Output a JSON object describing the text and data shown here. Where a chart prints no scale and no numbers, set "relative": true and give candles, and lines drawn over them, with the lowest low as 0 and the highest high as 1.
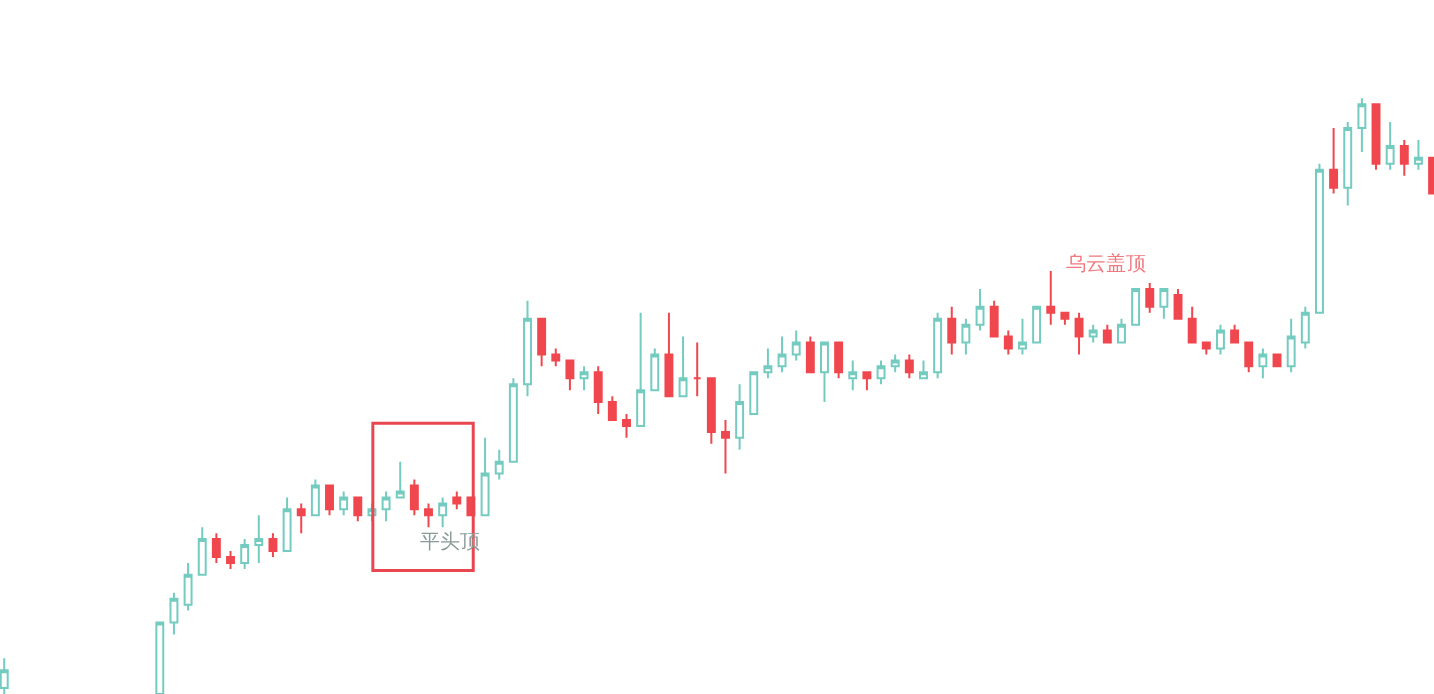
{
  "chart_data": {
    "type": "candlestick",
    "relative": true,
    "colors": [
      "#74cbc0",
      null,
      null,
      null,
      null,
      null,
      null,
      null,
      null,
      null,
      null,
      "#74cbc0",
      "#74cbc0",
      "#74cbc0",
      "#74cbc0",
      "#f0474f",
      "#f0474f",
      "#74cbc0",
      "#74cbc0",
      "#f0474f",
      "#74cbc0",
      "#f0474f",
      "#74cbc0",
      "#f0474f",
      "#74cbc0",
      "#f0474f",
      "#74cbc0",
      "#74cbc0",
      "#74cbc0",
      "#f0474f",
      "#f0474f",
      "#74cbc0",
      "#f0474f",
      "#f0474f",
      "#74cbc0",
      "#74cbc0",
      "#74cbc0",
      "#74cbc0",
      "#f0474f",
      "#f0474f",
      "#f0474f",
      "#74cbc0",
      "#f0474f",
      "#f0474f",
      "#f0474f",
      "#74cbc0",
      "#74cbc0",
      "#f0474f",
      "#74cbc0",
      "#f0474f",
      "#f0474f",
      "#f0474f",
      "#74cbc0",
      "#74cbc0",
      "#74cbc0",
      "#74cbc0",
      "#74cbc0",
      "#f0474f",
      "#74cbc0",
      "#f0474f",
      "#74cbc0",
      "#f0474f",
      "#74cbc0",
      "#74cbc0",
      "#f0474f",
      "#74cbc0",
      "#74cbc0",
      "#f0474f",
      "#74cbc0",
      "#74cbc0",
      "#f0474f",
      "#f0474f",
      "#74cbc0",
      "#74cbc0",
      "#f0474f",
      "#f0474f",
      "#f0474f",
      "#74cbc0",
      "#f0474f",
      "#74cbc0",
      "#74cbc0",
      "#f0474f",
      "#74cbc0",
      "#f0474f",
      "#f0474f",
      "#f0474f",
      "#74cbc0",
      "#f0474f",
      "#f0474f",
      "#74cbc0",
      "#f0474f",
      "#74cbc0",
      "#74cbc0",
      "#74cbc0",
      "#f0474f",
      "#74cbc0",
      "#74cbc0",
      "#f0474f",
      "#74cbc0",
      "#f0474f",
      "#74cbc0",
      "#f0474f"
    ],
    "legend": false,
    "tick_labels": false,
    "annotations": [
      "平头顶",
      "乌云盖顶"
    ],
    "categories": [
      null,
      null,
      null,
      null,
      null,
      null,
      null,
      null,
      null,
      null,
      null,
      null,
      null,
      null,
      null,
      null,
      null,
      null,
      null,
      null,
      null,
      null,
      null,
      null,
      null,
      null,
      null,
      null,
      null,
      null,
      null,
      null,
      null,
      null,
      null,
      null,
      null,
      null,
      null,
      null,
      null,
      null,
      null,
      null,
      null,
      null,
      null,
      null,
      null,
      null,
      null,
      null,
      null,
      null,
      null,
      null,
      null,
      null,
      null,
      null,
      null,
      null,
      null,
      null,
      null,
      null,
      null,
      null,
      null,
      null,
      null,
      null,
      null,
      null,
      null,
      null,
      null,
      null,
      null,
      null,
      null,
      null,
      null,
      null,
      null,
      null,
      null,
      null,
      null,
      null,
      null,
      null,
      null,
      null,
      null,
      null,
      null,
      null,
      null,
      null,
      null,
      null
    ],
    "ohlc": [
      [
        0.01,
        0.06,
        0,
        0.04
      ],
      null,
      null,
      null,
      null,
      null,
      null,
      null,
      null,
      null,
      null,
      [
        0,
        0.12,
        0,
        0.12
      ],
      [
        0.12,
        0.17,
        0.1,
        0.16
      ],
      [
        0.15,
        0.22,
        0.14,
        0.2
      ],
      [
        0.2,
        0.28,
        0.2,
        0.26
      ],
      [
        0.26,
        0.27,
        0.22,
        0.23
      ],
      [
        0.23,
        0.24,
        0.21,
        0.22
      ],
      [
        0.22,
        0.26,
        0.21,
        0.25
      ],
      [
        0.25,
        0.3,
        0.22,
        0.26
      ],
      [
        0.26,
        0.27,
        0.23,
        0.24
      ],
      [
        0.24,
        0.33,
        0.24,
        0.31
      ],
      [
        0.31,
        0.32,
        0.27,
        0.3
      ],
      [
        0.3,
        0.36,
        0.3,
        0.35
      ],
      [
        0.35,
        0.35,
        0.3,
        0.31
      ],
      [
        0.31,
        0.34,
        0.3,
        0.33
      ],
      [
        0.33,
        0.33,
        0.29,
        0.3
      ],
      [
        0.3,
        0.32,
        0.29,
        0.31
      ],
      [
        0.31,
        0.34,
        0.29,
        0.33
      ],
      [
        0.33,
        0.39,
        0.33,
        0.34
      ],
      [
        0.35,
        0.36,
        0.3,
        0.31
      ],
      [
        0.31,
        0.32,
        0.28,
        0.3
      ],
      [
        0.3,
        0.33,
        0.28,
        0.32
      ],
      [
        0.33,
        0.34,
        0.31,
        0.32
      ],
      [
        0.33,
        0.33,
        0.3,
        0.3
      ],
      [
        0.3,
        0.43,
        0.3,
        0.37
      ],
      [
        0.37,
        0.41,
        0.36,
        0.39
      ],
      [
        0.39,
        0.53,
        0.39,
        0.52
      ],
      [
        0.52,
        0.66,
        0.5,
        0.63
      ],
      [
        0.63,
        0.63,
        0.55,
        0.57
      ],
      [
        0.57,
        0.58,
        0.55,
        0.56
      ],
      [
        0.56,
        0.56,
        0.51,
        0.53
      ],
      [
        0.53,
        0.55,
        0.51,
        0.54
      ],
      [
        0.54,
        0.55,
        0.47,
        0.49
      ],
      [
        0.49,
        0.5,
        0.46,
        0.46
      ],
      [
        0.46,
        0.47,
        0.43,
        0.45
      ],
      [
        0.45,
        0.64,
        0.45,
        0.51
      ],
      [
        0.51,
        0.58,
        0.51,
        0.57
      ],
      [
        0.57,
        0.64,
        0.5,
        0.5
      ],
      [
        0.5,
        0.6,
        0.5,
        0.53
      ],
      [
        0.53,
        0.59,
        0.5,
        0.53
      ],
      [
        0.53,
        0.53,
        0.42,
        0.44
      ],
      [
        0.44,
        0.46,
        0.37,
        0.43
      ],
      [
        0.43,
        0.52,
        0.41,
        0.49
      ],
      [
        0.47,
        0.54,
        0.47,
        0.54
      ],
      [
        0.54,
        0.58,
        0.53,
        0.55
      ],
      [
        0.55,
        0.6,
        0.54,
        0.57
      ],
      [
        0.57,
        0.61,
        0.56,
        0.59
      ],
      [
        0.59,
        0.6,
        0.54,
        0.54
      ],
      [
        0.54,
        0.59,
        0.49,
        0.59
      ],
      [
        0.59,
        0.59,
        0.53,
        0.54
      ],
      [
        0.53,
        0.56,
        0.51,
        0.54
      ],
      [
        0.54,
        0.54,
        0.51,
        0.53
      ],
      [
        0.53,
        0.56,
        0.52,
        0.55
      ],
      [
        0.55,
        0.57,
        0.54,
        0.56
      ],
      [
        0.56,
        0.57,
        0.53,
        0.54
      ],
      [
        0.53,
        0.56,
        0.53,
        0.54
      ],
      [
        0.54,
        0.64,
        0.53,
        0.63
      ],
      [
        0.63,
        0.65,
        0.57,
        0.59
      ],
      [
        0.59,
        0.63,
        0.57,
        0.62
      ],
      [
        0.62,
        0.68,
        0.61,
        0.65
      ],
      [
        0.65,
        0.66,
        0.6,
        0.6
      ],
      [
        0.6,
        0.61,
        0.57,
        0.58
      ],
      [
        0.58,
        0.63,
        0.57,
        0.59
      ],
      [
        0.59,
        0.65,
        0.59,
        0.65
      ],
      [
        0.65,
        0.71,
        0.62,
        0.64
      ],
      [
        0.64,
        0.64,
        0.62,
        0.63
      ],
      [
        0.63,
        0.64,
        0.57,
        0.6
      ],
      [
        0.6,
        0.62,
        0.59,
        0.61
      ],
      [
        0.61,
        0.62,
        0.59,
        0.59
      ],
      [
        0.59,
        0.63,
        0.59,
        0.62
      ],
      [
        0.62,
        0.68,
        0.62,
        0.68
      ],
      [
        0.68,
        0.69,
        0.64,
        0.65
      ],
      [
        0.65,
        0.68,
        0.63,
        0.68
      ],
      [
        0.67,
        0.68,
        0.63,
        0.63
      ],
      [
        0.63,
        0.65,
        0.59,
        0.59
      ],
      [
        0.59,
        0.59,
        0.57,
        0.58
      ],
      [
        0.58,
        0.62,
        0.57,
        0.61
      ],
      [
        0.61,
        0.62,
        0.59,
        0.59
      ],
      [
        0.59,
        0.59,
        0.54,
        0.55
      ],
      [
        0.55,
        0.58,
        0.53,
        0.57
      ],
      [
        0.57,
        0.57,
        0.55,
        0.55
      ],
      [
        0.55,
        0.63,
        0.54,
        0.6
      ],
      [
        0.59,
        0.65,
        0.58,
        0.64
      ],
      [
        0.64,
        0.89,
        0.64,
        0.88
      ],
      [
        0.88,
        0.95,
        0.84,
        0.85
      ],
      [
        0.85,
        0.96,
        0.82,
        0.95
      ],
      [
        0.95,
        1,
        0.91,
        0.99
      ],
      [
        0.99,
        0.99,
        0.88,
        0.89
      ],
      [
        0.89,
        0.96,
        0.88,
        0.92
      ],
      [
        0.92,
        0.93,
        0.87,
        0.89
      ],
      [
        0.89,
        0.93,
        0.88,
        0.9
      ],
      [
        0.9,
        0.9,
        0.84,
        0.84
      ]
    ]
  }
}
